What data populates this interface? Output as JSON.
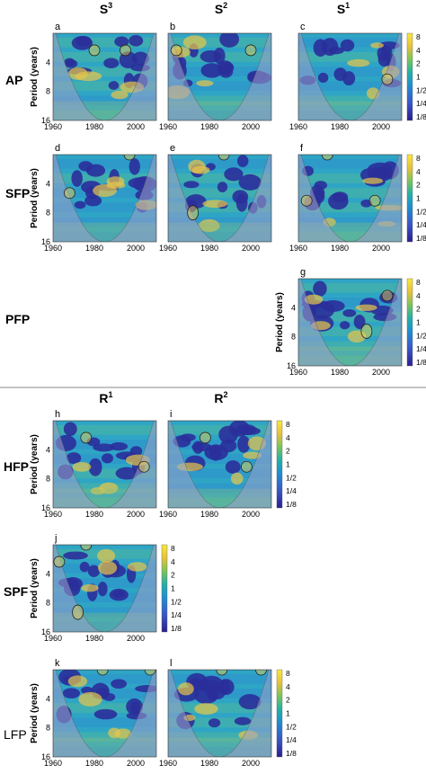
{
  "column_headers": {
    "s3": {
      "base": "S",
      "exp": "3"
    },
    "s2": {
      "base": "S",
      "exp": "2"
    },
    "s1": {
      "base": "S",
      "exp": "1"
    },
    "r1": {
      "base": "R",
      "exp": "1"
    },
    "r2": {
      "base": "R",
      "exp": "2"
    }
  },
  "row_labels": {
    "ap": "AP",
    "sfp": "SFP",
    "pfp": "PFP",
    "hfp": "HFP",
    "spf": "SPF",
    "lfp": "LFP"
  },
  "colors": {
    "low": "#3b2a9b",
    "mid_low": "#2a6fd6",
    "mid": "#28a6b8",
    "mid_high": "#7fc35a",
    "high": "#f0c63a",
    "top": "#f9e43a",
    "coi_shade": "#9aa0c8",
    "divider": "#888888"
  },
  "chart_data": [
    {
      "type": "heatmap",
      "panel": "a",
      "row": "AP",
      "column": "S3",
      "x_range": [
        1960,
        2010
      ],
      "y_range_years": [
        2,
        16
      ],
      "x_ticks": [
        "1960",
        "1980",
        "2000"
      ],
      "y_ticks": [
        "4",
        "8",
        "16"
      ],
      "ylabel": "Period (years)",
      "significant_regions": [
        {
          "x": 1980,
          "y": 3
        },
        {
          "x": 1995,
          "y": 3
        }
      ]
    },
    {
      "type": "heatmap",
      "panel": "b",
      "row": "AP",
      "column": "S2",
      "x_range": [
        1960,
        2010
      ],
      "y_range_years": [
        2,
        16
      ],
      "x_ticks": [
        "1960",
        "1980",
        "2000"
      ],
      "y_ticks": [],
      "significant_regions": [
        {
          "x": 1964,
          "y": 3
        },
        {
          "x": 2000,
          "y": 3
        }
      ]
    },
    {
      "type": "heatmap",
      "panel": "c",
      "row": "AP",
      "column": "S1",
      "x_range": [
        1960,
        2010
      ],
      "y_range_years": [
        2,
        16
      ],
      "x_ticks": [
        "1960",
        "1980",
        "2000"
      ],
      "y_ticks": [],
      "colorbar_ticks": [
        "8",
        "4",
        "2",
        "1",
        "1/2",
        "1/4",
        "1/8"
      ],
      "significant_regions": [
        {
          "x": 2003,
          "y": 6
        }
      ]
    },
    {
      "type": "heatmap",
      "panel": "d",
      "row": "SFP",
      "column": "S3",
      "x_range": [
        1960,
        2010
      ],
      "y_range_years": [
        2,
        16
      ],
      "x_ticks": [
        "1960",
        "1980",
        "2000"
      ],
      "y_ticks": [
        "4",
        "8",
        "16"
      ],
      "ylabel": "Period (years)",
      "significant_regions": [
        {
          "x": 1997,
          "y": 2
        },
        {
          "x": 1968,
          "y": 5
        }
      ]
    },
    {
      "type": "heatmap",
      "panel": "e",
      "row": "SFP",
      "column": "S2",
      "x_range": [
        1960,
        2010
      ],
      "y_range_years": [
        2,
        16
      ],
      "x_ticks": [
        "1960",
        "1980",
        "2000"
      ],
      "y_ticks": [],
      "significant_regions": [
        {
          "x": 1987,
          "y": 2
        },
        {
          "x": 1972,
          "y": 8
        }
      ]
    },
    {
      "type": "heatmap",
      "panel": "f",
      "row": "SFP",
      "column": "S1",
      "x_range": [
        1960,
        2010
      ],
      "y_range_years": [
        2,
        16
      ],
      "x_ticks": [
        "1960",
        "1980",
        "2000"
      ],
      "y_ticks": [],
      "colorbar_ticks": [
        "8",
        "4",
        "2",
        "1",
        "1/2",
        "1/4",
        "1/8"
      ],
      "significant_regions": [
        {
          "x": 1974,
          "y": 2
        },
        {
          "x": 1964,
          "y": 6
        },
        {
          "x": 1997,
          "y": 6
        }
      ]
    },
    {
      "type": "heatmap",
      "panel": "g",
      "row": "PFP",
      "column": "S1",
      "x_range": [
        1960,
        2010
      ],
      "y_range_years": [
        2,
        16
      ],
      "x_ticks": [
        "1960",
        "1980",
        "2000"
      ],
      "y_ticks": [
        "4",
        "8",
        "16"
      ],
      "ylabel": "Period (years)",
      "colorbar_ticks": [
        "8",
        "4",
        "2",
        "1",
        "1/2",
        "1/4",
        "1/8"
      ],
      "significant_regions": [
        {
          "x": 2003,
          "y": 3
        },
        {
          "x": 1993,
          "y": 7
        }
      ]
    },
    {
      "type": "heatmap",
      "panel": "h",
      "row": "HFP",
      "column": "R1",
      "x_range": [
        1960,
        2010
      ],
      "y_range_years": [
        2,
        16
      ],
      "x_ticks": [
        "1960",
        "1980",
        "2000"
      ],
      "y_ticks": [
        "4",
        "8",
        "16"
      ],
      "ylabel": "Period (years)",
      "significant_regions": [
        {
          "x": 1976,
          "y": 3
        },
        {
          "x": 2004,
          "y": 6
        }
      ]
    },
    {
      "type": "heatmap",
      "panel": "i",
      "row": "HFP",
      "column": "R2",
      "x_range": [
        1960,
        2010
      ],
      "y_range_years": [
        2,
        16
      ],
      "x_ticks": [
        "1960",
        "1980",
        "2000"
      ],
      "y_ticks": [],
      "colorbar_ticks": [
        "8",
        "4",
        "2",
        "1",
        "1/2",
        "1/4",
        "1/8"
      ],
      "significant_regions": [
        {
          "x": 1978,
          "y": 3
        },
        {
          "x": 1998,
          "y": 6
        }
      ]
    },
    {
      "type": "heatmap",
      "panel": "j",
      "row": "SPF",
      "column": "R1",
      "x_range": [
        1960,
        2010
      ],
      "y_range_years": [
        2,
        16
      ],
      "x_ticks": [
        "1960",
        "1980",
        "2000"
      ],
      "y_ticks": [
        "4",
        "8",
        "16"
      ],
      "ylabel": "Period (years)",
      "colorbar_ticks": [
        "8",
        "4",
        "2",
        "1",
        "1/2",
        "1/4",
        "1/8"
      ],
      "significant_regions": [
        {
          "x": 1963,
          "y": 3
        },
        {
          "x": 1976,
          "y": 2
        },
        {
          "x": 1972,
          "y": 10
        }
      ]
    },
    {
      "type": "heatmap",
      "panel": "k",
      "row": "LFP",
      "column": "R1",
      "x_range": [
        1960,
        2010
      ],
      "y_range_years": [
        2,
        16
      ],
      "x_ticks": [
        "1960",
        "1980",
        "2000"
      ],
      "y_ticks": [
        "4",
        "8",
        "16"
      ],
      "ylabel": "Period (years)",
      "significant_regions": [
        {
          "x": 1984,
          "y": 2
        },
        {
          "x": 2007,
          "y": 2
        }
      ]
    },
    {
      "type": "heatmap",
      "panel": "l",
      "row": "LFP",
      "column": "R2",
      "x_range": [
        1960,
        2010
      ],
      "y_range_years": [
        2,
        16
      ],
      "x_ticks": [
        "1960",
        "1980",
        "2000"
      ],
      "y_ticks": [],
      "colorbar_ticks": [
        "8",
        "4",
        "2",
        "1",
        "1/2",
        "1/4",
        "1/8"
      ],
      "significant_regions": [
        {
          "x": 1986,
          "y": 2
        },
        {
          "x": 2005,
          "y": 2
        }
      ]
    }
  ]
}
